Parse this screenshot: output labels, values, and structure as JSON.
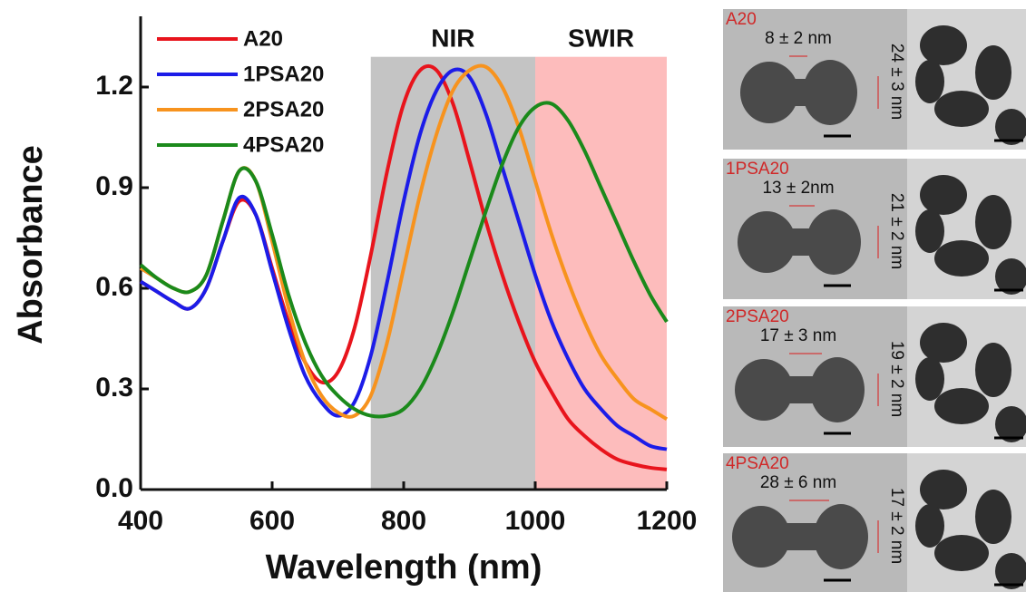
{
  "chart_data": {
    "type": "line",
    "x_label": "Wavelength (nm)",
    "y_label": "Absorbance",
    "x": [
      400,
      425,
      450,
      475,
      500,
      525,
      550,
      575,
      600,
      625,
      650,
      675,
      700,
      725,
      750,
      775,
      800,
      825,
      850,
      875,
      900,
      925,
      950,
      975,
      1000,
      1025,
      1050,
      1075,
      1100,
      1125,
      1150,
      1175,
      1200
    ],
    "series": [
      {
        "name": "A20",
        "color": "#e8141c",
        "values": [
          0.62,
          0.59,
          0.56,
          0.54,
          0.6,
          0.74,
          0.86,
          0.82,
          0.66,
          0.5,
          0.38,
          0.32,
          0.35,
          0.48,
          0.7,
          0.95,
          1.15,
          1.25,
          1.25,
          1.15,
          0.98,
          0.8,
          0.64,
          0.5,
          0.38,
          0.29,
          0.21,
          0.16,
          0.12,
          0.09,
          0.075,
          0.065,
          0.06
        ]
      },
      {
        "name": "1PSA20",
        "color": "#1c1ce8",
        "values": [
          0.62,
          0.59,
          0.56,
          0.54,
          0.6,
          0.74,
          0.87,
          0.82,
          0.65,
          0.48,
          0.34,
          0.26,
          0.22,
          0.26,
          0.4,
          0.62,
          0.86,
          1.06,
          1.19,
          1.25,
          1.23,
          1.12,
          0.96,
          0.8,
          0.64,
          0.5,
          0.39,
          0.3,
          0.24,
          0.19,
          0.16,
          0.13,
          0.12
        ]
      },
      {
        "name": "2PSA20",
        "color": "#f7931e",
        "values": [
          0.66,
          0.63,
          0.6,
          0.59,
          0.64,
          0.8,
          0.95,
          0.92,
          0.74,
          0.54,
          0.38,
          0.28,
          0.23,
          0.22,
          0.28,
          0.44,
          0.66,
          0.88,
          1.06,
          1.19,
          1.25,
          1.26,
          1.2,
          1.08,
          0.92,
          0.76,
          0.62,
          0.5,
          0.4,
          0.33,
          0.27,
          0.24,
          0.21
        ]
      },
      {
        "name": "4PSA20",
        "color": "#1b8a1b",
        "values": [
          0.67,
          0.63,
          0.6,
          0.59,
          0.64,
          0.8,
          0.95,
          0.92,
          0.76,
          0.58,
          0.44,
          0.34,
          0.28,
          0.24,
          0.22,
          0.22,
          0.24,
          0.3,
          0.4,
          0.53,
          0.68,
          0.83,
          0.97,
          1.08,
          1.14,
          1.15,
          1.1,
          1.01,
          0.9,
          0.79,
          0.68,
          0.58,
          0.5
        ]
      }
    ],
    "regions": [
      {
        "label": "NIR",
        "x_range": [
          750,
          1000
        ],
        "y_range": [
          0,
          1.29
        ],
        "color": "#c4c4c4"
      },
      {
        "label": "SWIR",
        "x_range": [
          1000,
          1200
        ],
        "y_range": [
          0,
          1.29
        ],
        "color": "#fdbcbc"
      }
    ],
    "xlim": [
      400,
      1200
    ],
    "xticks": [
      400,
      600,
      800,
      1000,
      1200
    ],
    "ylim": [
      0,
      1.4
    ],
    "yticks": [
      {
        "value": 0,
        "label": "0.0"
      },
      0.3,
      0.6,
      0.9,
      1.2
    ],
    "legend": "upper left"
  },
  "tem_panels": [
    {
      "label": "A20",
      "length": "8 ± 2 nm",
      "width": "24 ± 3 nm"
    },
    {
      "label": "1PSA20",
      "length": "13 ± 2nm",
      "width": "21 ± 2 nm"
    },
    {
      "label": "2PSA20",
      "length": "17 ± 3 nm",
      "width": "19 ± 2 nm"
    },
    {
      "label": "4PSA20",
      "length": "28 ± 6 nm",
      "width": "17 ± 2 nm"
    }
  ]
}
